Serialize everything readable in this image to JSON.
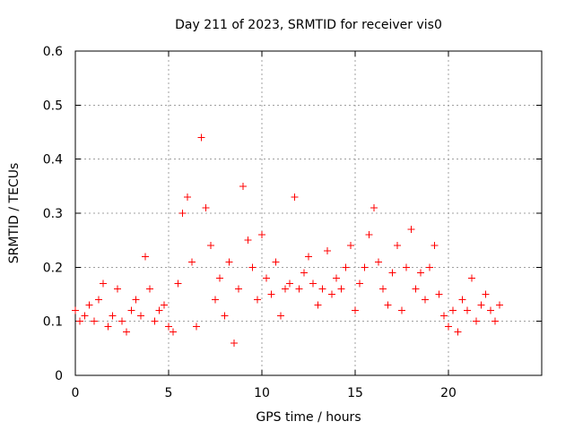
{
  "chart_data": {
    "type": "scatter",
    "title": "Day 211 of 2023, SRMTID for receiver vis0",
    "xlabel": "GPS time / hours",
    "ylabel": "SRMTID / TECUs",
    "xlim": [
      0,
      25
    ],
    "ylim": [
      0,
      0.6
    ],
    "xticks": [
      0,
      5,
      10,
      15,
      20
    ],
    "yticks": [
      0,
      0.1,
      0.2,
      0.3,
      0.4,
      0.5,
      0.6
    ],
    "grid": true,
    "series": [
      {
        "name": "SRMTID",
        "color": "#ff0000",
        "marker": "plus",
        "x": [
          0.0,
          0.25,
          0.5,
          0.75,
          1.0,
          1.25,
          1.5,
          1.75,
          2.0,
          2.25,
          2.5,
          2.75,
          3.0,
          3.25,
          3.5,
          3.75,
          4.0,
          4.25,
          4.5,
          4.75,
          5.0,
          5.25,
          5.5,
          5.75,
          6.0,
          6.25,
          6.5,
          6.75,
          7.0,
          7.25,
          7.5,
          7.75,
          8.0,
          8.25,
          8.5,
          8.75,
          9.0,
          9.25,
          9.5,
          9.75,
          10.0,
          10.25,
          10.5,
          10.75,
          11.0,
          11.25,
          11.5,
          11.75,
          12.0,
          12.25,
          12.5,
          12.75,
          13.0,
          13.25,
          13.5,
          13.75,
          14.0,
          14.25,
          14.5,
          14.75,
          15.0,
          15.25,
          15.5,
          15.75,
          16.0,
          16.25,
          16.5,
          16.75,
          17.0,
          17.25,
          17.5,
          17.75,
          18.0,
          18.25,
          18.5,
          18.75,
          19.0,
          19.25,
          19.5,
          19.75,
          20.0,
          20.25,
          20.5,
          20.75,
          21.0,
          21.25,
          21.5,
          21.75,
          22.0,
          22.25,
          22.5,
          22.75
        ],
        "y": [
          0.12,
          0.1,
          0.11,
          0.13,
          0.1,
          0.14,
          0.17,
          0.09,
          0.11,
          0.16,
          0.1,
          0.08,
          0.12,
          0.14,
          0.11,
          0.22,
          0.16,
          0.1,
          0.12,
          0.13,
          0.09,
          0.08,
          0.17,
          0.3,
          0.33,
          0.21,
          0.09,
          0.44,
          0.31,
          0.24,
          0.14,
          0.18,
          0.11,
          0.21,
          0.06,
          0.16,
          0.35,
          0.25,
          0.2,
          0.14,
          0.26,
          0.18,
          0.15,
          0.21,
          0.11,
          0.16,
          0.17,
          0.33,
          0.16,
          0.19,
          0.22,
          0.17,
          0.13,
          0.16,
          0.23,
          0.15,
          0.18,
          0.16,
          0.2,
          0.24,
          0.12,
          0.17,
          0.2,
          0.26,
          0.31,
          0.21,
          0.16,
          0.13,
          0.19,
          0.24,
          0.12,
          0.2,
          0.27,
          0.16,
          0.19,
          0.14,
          0.2,
          0.24,
          0.15,
          0.11,
          0.09,
          0.12,
          0.08,
          0.14,
          0.12,
          0.18,
          0.1,
          0.13,
          0.15,
          0.12,
          0.1,
          0.13
        ]
      }
    ]
  }
}
